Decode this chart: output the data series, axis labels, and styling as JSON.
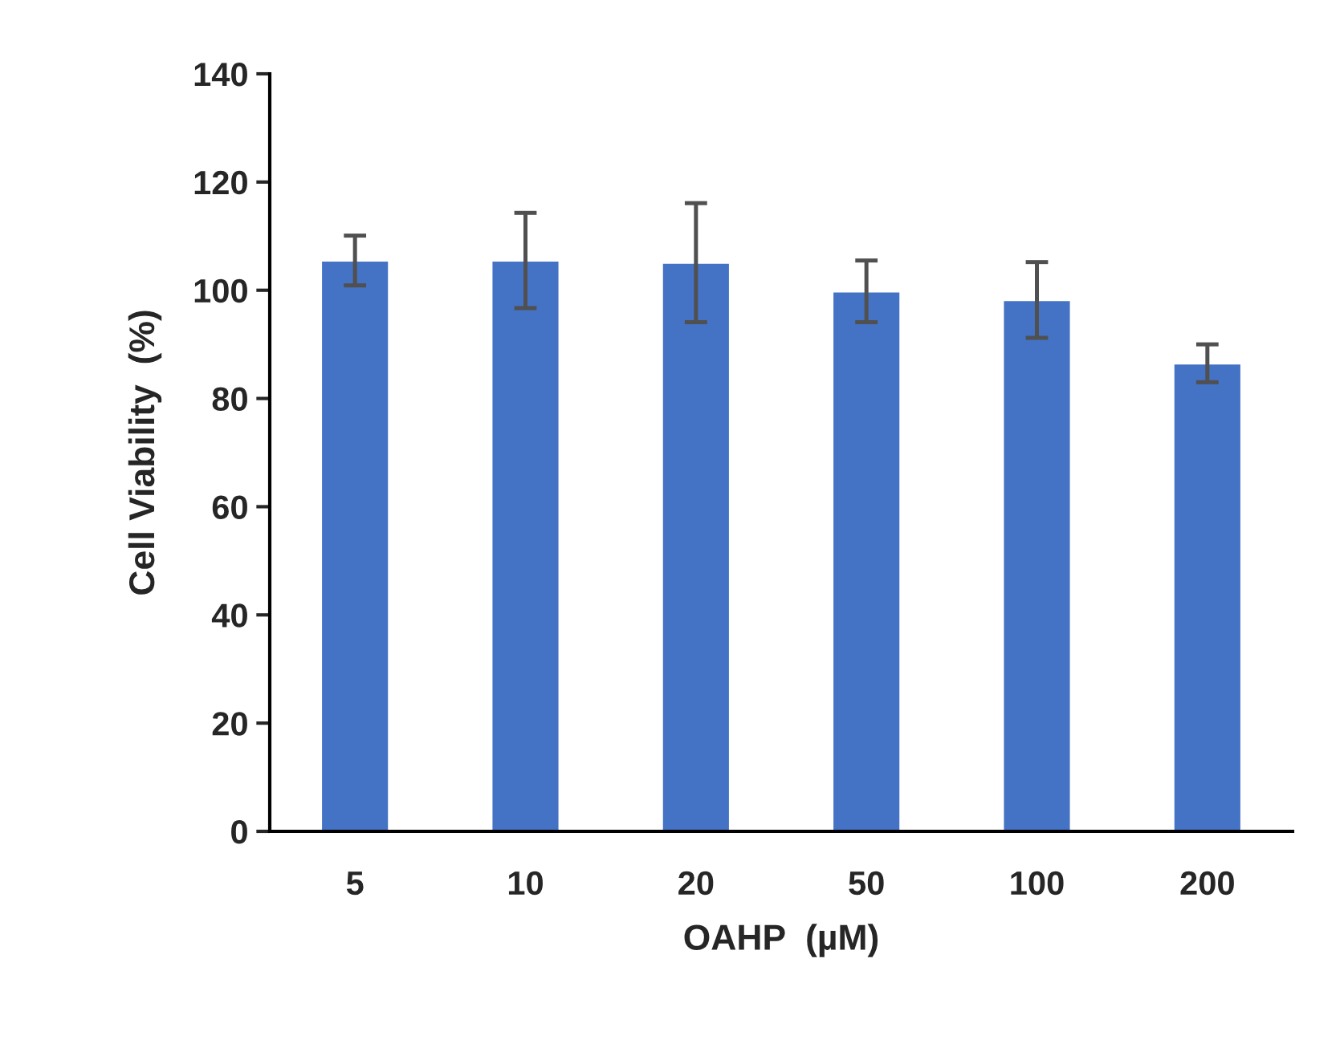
{
  "chart_data": {
    "type": "bar",
    "xlabel": "OAHP  (µM)",
    "ylabel": "Cell Viability  (%)",
    "categories": [
      "5",
      "10",
      "20",
      "50",
      "100",
      "200"
    ],
    "values": [
      105.5,
      105.5,
      105.1,
      99.8,
      98.2,
      86.5
    ],
    "errors": [
      4.6,
      8.8,
      11,
      5.7,
      7,
      3.5
    ],
    "color": "#4472c4",
    "ylim": [
      0,
      140
    ],
    "yticks": [
      0,
      20,
      40,
      60,
      80,
      100,
      120,
      140
    ],
    "grid": false
  }
}
